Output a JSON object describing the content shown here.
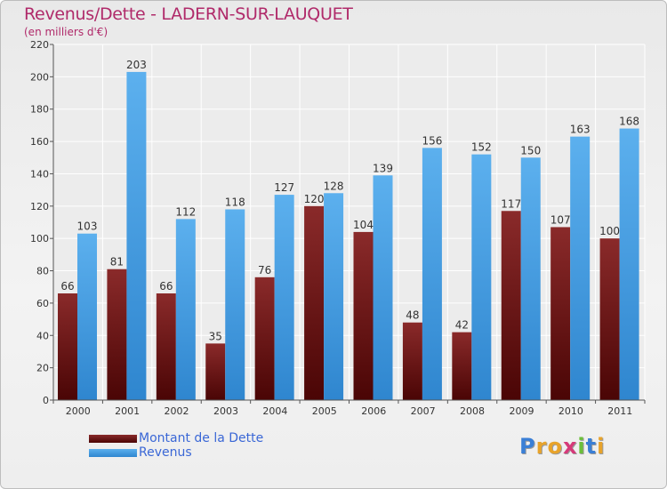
{
  "header": {
    "title": "Revenus/Dette - LADERN-SUR-LAUQUET",
    "subtitle": "(en milliers d'€)"
  },
  "colors": {
    "title": "#b02a6a",
    "debt": "#7a1b1b",
    "revenue": "#4aa3e6",
    "legend_text": "#3a67d6"
  },
  "legend": {
    "items": [
      {
        "label": "Montant de la Dette"
      },
      {
        "label": "Revenus"
      }
    ]
  },
  "logo": {
    "letters": [
      "P",
      "r",
      "o",
      "x",
      "i",
      "t",
      "i"
    ]
  },
  "chart_data": {
    "type": "bar",
    "categories": [
      "2000",
      "2001",
      "2002",
      "2003",
      "2004",
      "2005",
      "2006",
      "2007",
      "2008",
      "2009",
      "2010",
      "2011"
    ],
    "series": [
      {
        "name": "Montant de la Dette",
        "values": [
          66,
          81,
          66,
          35,
          76,
          120,
          104,
          48,
          42,
          117,
          107,
          100
        ]
      },
      {
        "name": "Revenus",
        "values": [
          103,
          203,
          112,
          118,
          127,
          128,
          139,
          156,
          152,
          150,
          163,
          168
        ]
      }
    ],
    "ylim": [
      0,
      220
    ],
    "yticks": [
      0,
      20,
      40,
      60,
      80,
      100,
      120,
      140,
      160,
      180,
      200,
      220
    ],
    "grid": true,
    "legend_position": "bottom-left"
  }
}
